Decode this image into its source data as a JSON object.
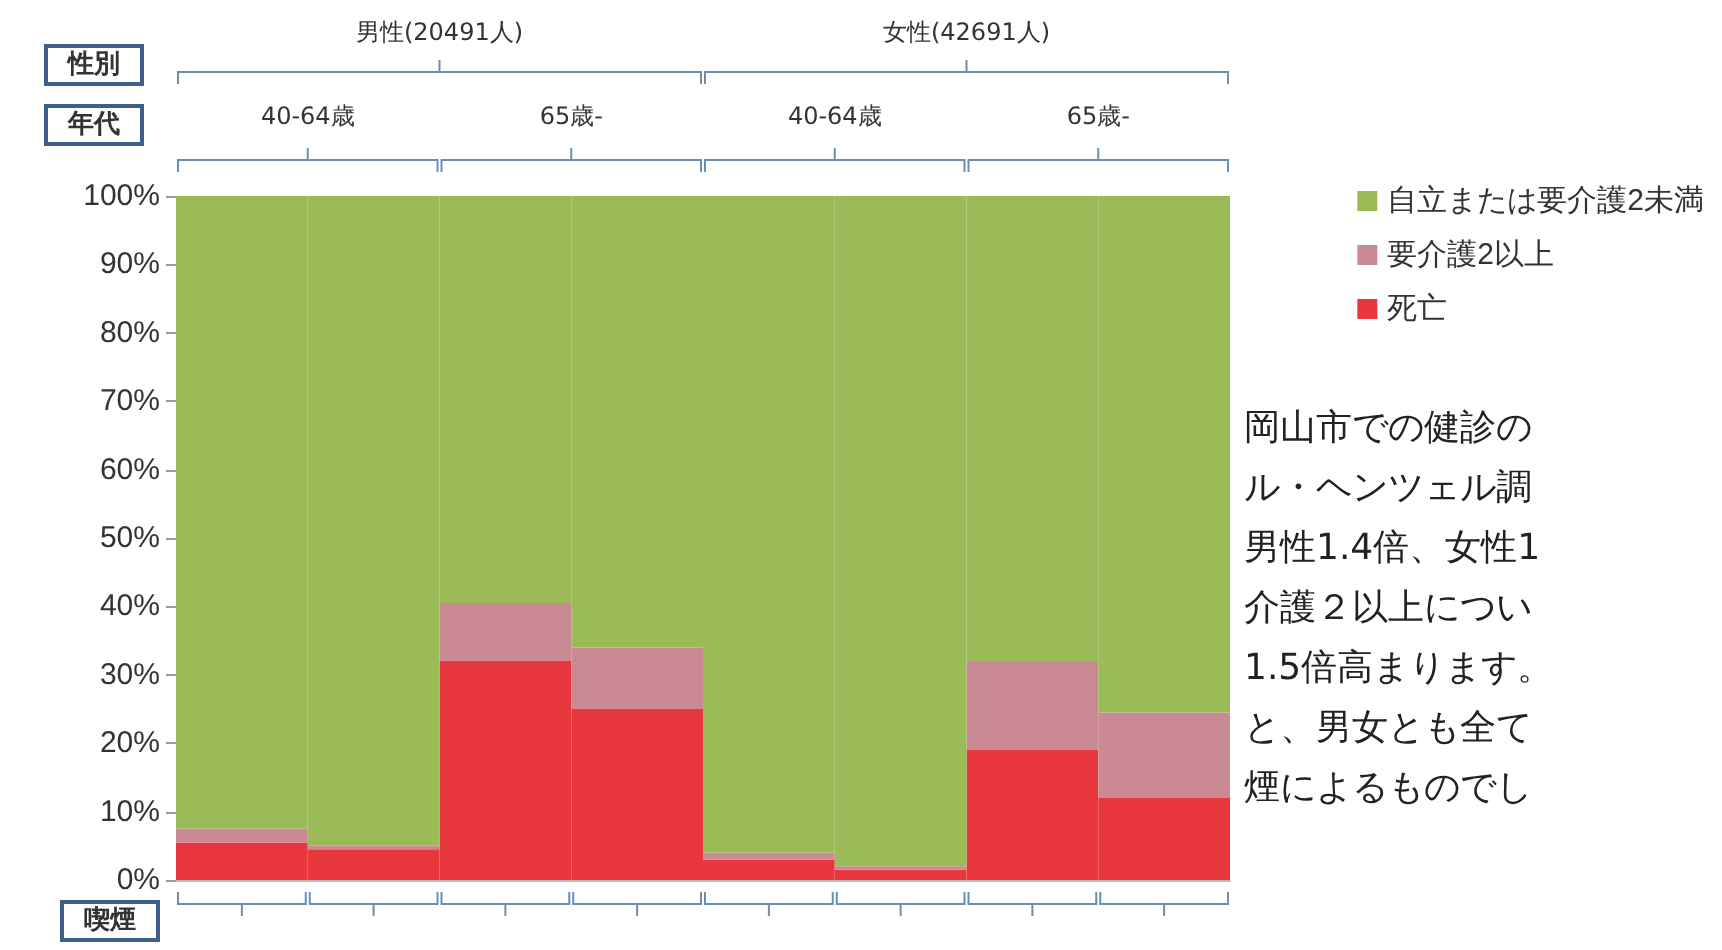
{
  "chart_data": {
    "type": "bar",
    "stacked": true,
    "categories": [
      null,
      null,
      null,
      null,
      null,
      null,
      null,
      null
    ],
    "series": [
      {
        "name": "死亡",
        "color": "#e8383d",
        "values": [
          5.5,
          4.5,
          32,
          25,
          3,
          1.5,
          19,
          12
        ]
      },
      {
        "name": "要介護2以上",
        "color": "#c98a94",
        "values": [
          2,
          0.5,
          8.5,
          9,
          1,
          0.5,
          13,
          12.5
        ]
      },
      {
        "name": "自立または要介護2未満",
        "color": "#9bbb59",
        "values": [
          92.5,
          95,
          59.5,
          66,
          96,
          98,
          68,
          75.5
        ]
      }
    ],
    "ylim": [
      0,
      100
    ],
    "yticks": [
      {
        "value": 0,
        "label": "0%"
      },
      {
        "value": 10,
        "label": "10%"
      },
      {
        "value": 20,
        "label": "20%"
      },
      {
        "value": 30,
        "label": "30%"
      },
      {
        "value": 40,
        "label": "40%"
      },
      {
        "value": 50,
        "label": "50%"
      },
      {
        "value": 60,
        "label": "60%"
      },
      {
        "value": 70,
        "label": "70%"
      },
      {
        "value": 80,
        "label": "80%"
      },
      {
        "value": 90,
        "label": "90%"
      },
      {
        "value": 100,
        "label": "100%"
      }
    ],
    "legend": "top right",
    "grid": false,
    "annotations": [
      "性別",
      "年代",
      "喫煙",
      "男性(20491人)",
      "女性(42691人)",
      "40-64歳",
      "65歳-",
      "40-64歳",
      "65歳-",
      "岡山市での健診の",
      "ル・ヘンツェル調",
      "男性1.4倍、女性1",
      "介護２以上につい",
      "1.5倍高まります。",
      "と、男女とも全て",
      "煙によるものでし"
    ]
  }
}
